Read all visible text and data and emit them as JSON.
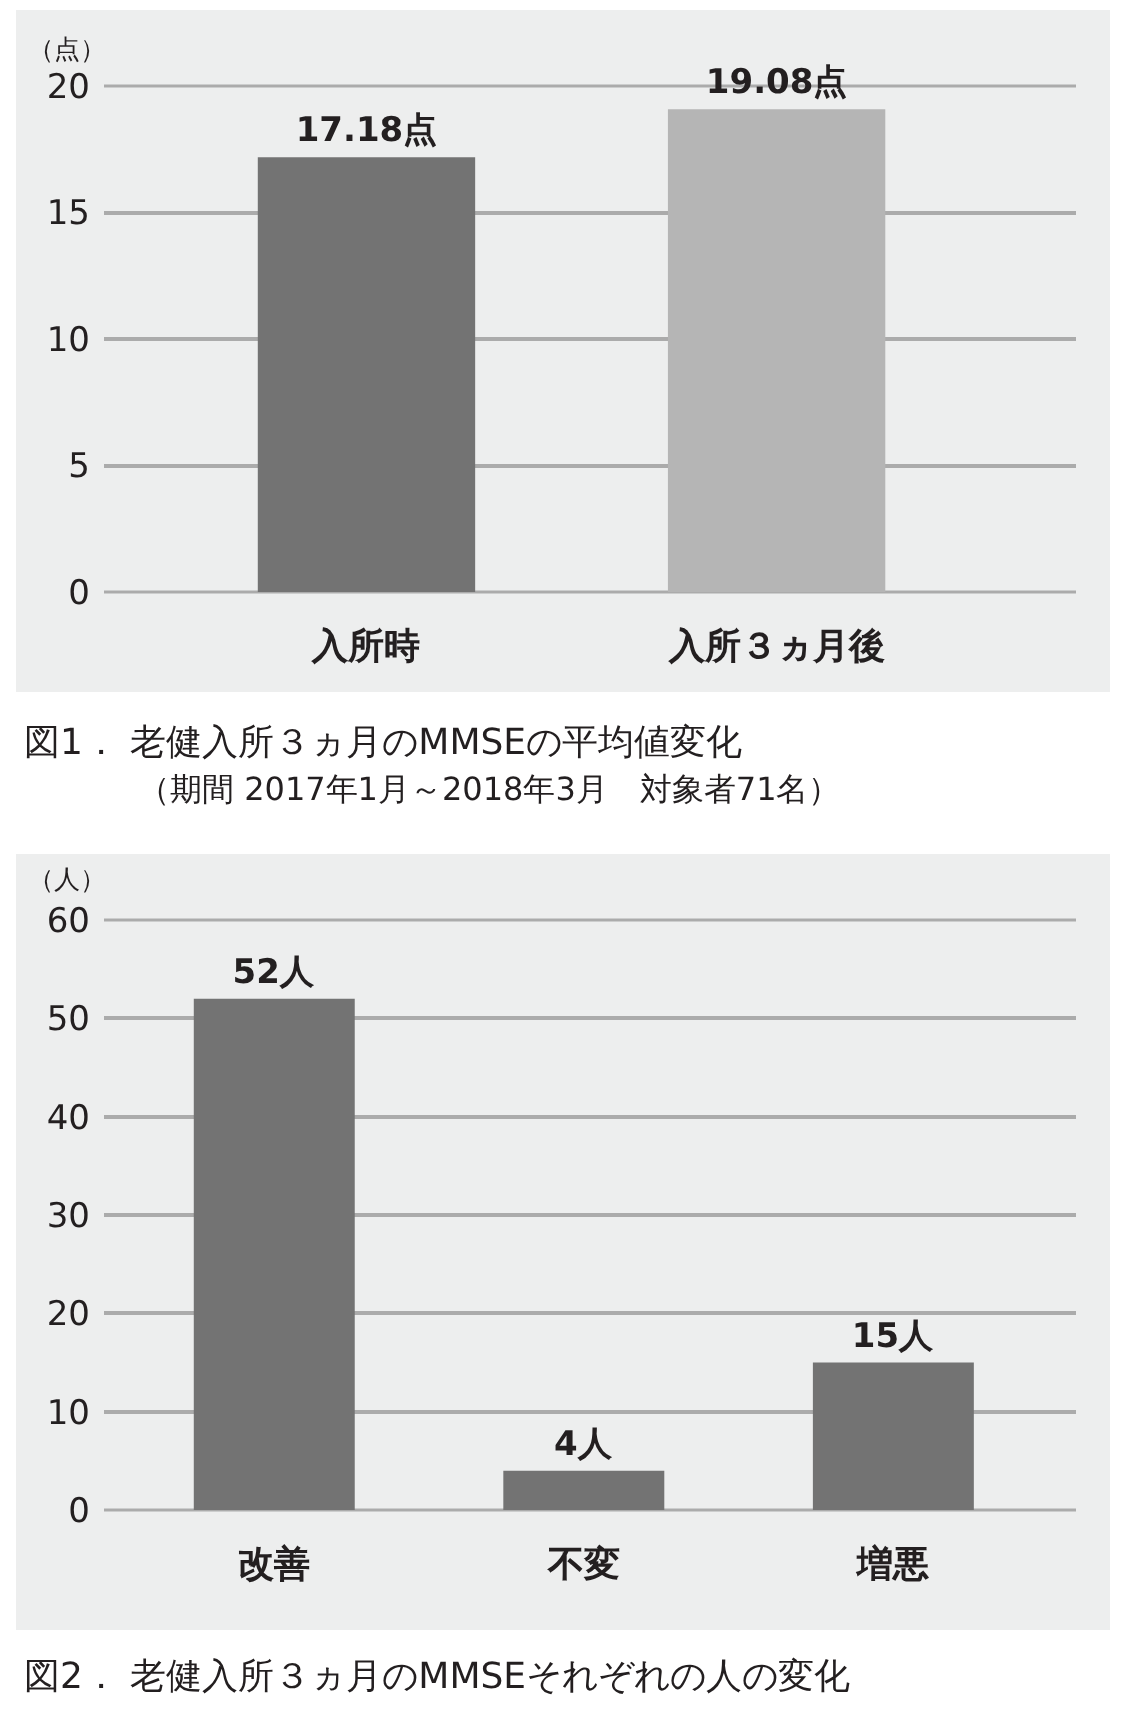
{
  "chart_data": [
    {
      "type": "bar",
      "title": "図1． 老健入所３ヵ月のMMSEの平均値変化",
      "subtitle": "（期間 2017年1月～2018年3月　対象者71名）",
      "ylabel": "（点）",
      "categories": [
        "入所時",
        "入所３ヵ月後"
      ],
      "values": [
        17.18,
        19.08
      ],
      "colors": [
        "#737373",
        "#b5b5b5"
      ],
      "value_labels": [
        "17.18点",
        "19.08点"
      ],
      "ylim": [
        0,
        20
      ],
      "yticks": [
        0,
        5,
        10,
        15,
        20
      ],
      "grid": "y"
    },
    {
      "type": "bar",
      "title": "図2． 老健入所３ヵ月のMMSEそれぞれの人の変化",
      "ylabel": "（人）",
      "categories": [
        "改善",
        "不変",
        "増悪"
      ],
      "values": [
        52,
        4,
        15
      ],
      "color": "#737373",
      "value_labels": [
        "52人",
        "4人",
        "15人"
      ],
      "ylim": [
        0,
        60
      ],
      "yticks": [
        0,
        10,
        20,
        30,
        40,
        50,
        60
      ],
      "grid": "y"
    }
  ]
}
